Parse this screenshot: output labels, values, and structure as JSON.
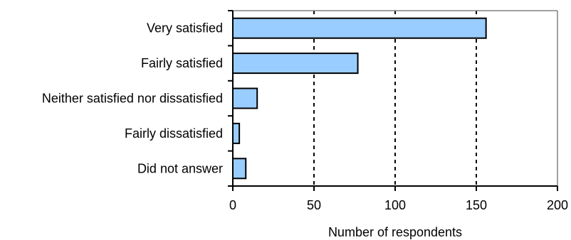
{
  "chart_data": {
    "type": "bar",
    "orientation": "horizontal",
    "title": "",
    "xlabel": "Number of respondents",
    "ylabel": "",
    "categories": [
      "Very satisfied",
      "Fairly satisfied",
      "Neither satisfied nor dissatisfied",
      "Fairly dissatisfied",
      "Did not answer"
    ],
    "values": [
      156,
      77,
      15,
      4,
      8
    ],
    "xlim": [
      0,
      200
    ],
    "xticks": [
      0,
      50,
      100,
      150,
      200
    ],
    "xtick_labels": [
      "0",
      "50",
      "100",
      "150",
      "200"
    ],
    "grid": "vertical dashed",
    "legend": "none",
    "bar_color": "#99ccff",
    "bar_edge_color": "#000000",
    "grid_color": "#000000"
  }
}
